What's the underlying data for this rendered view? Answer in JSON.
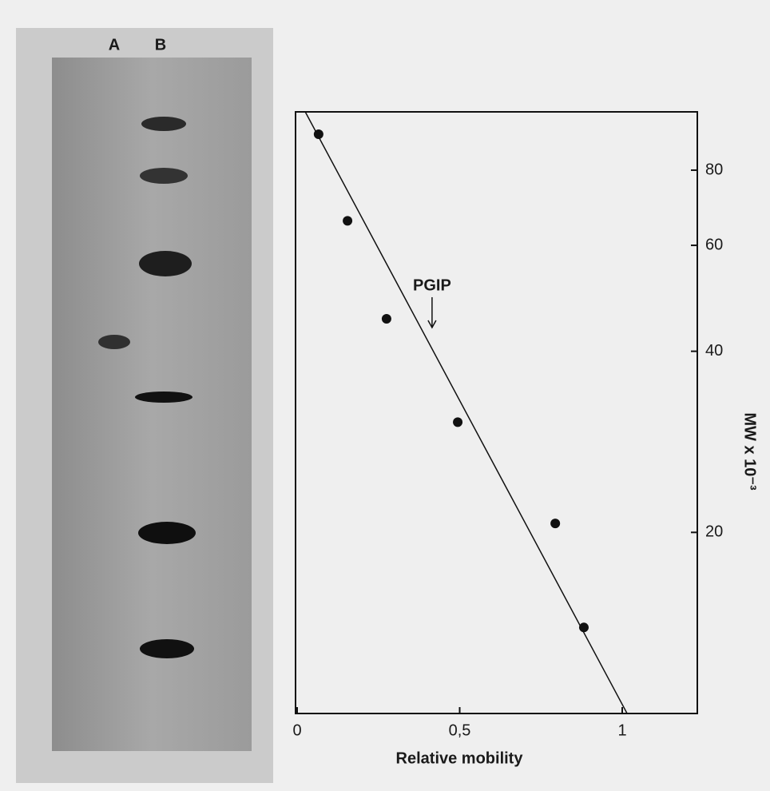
{
  "gel": {
    "lanes": [
      "A",
      "B"
    ]
  },
  "chart_data": {
    "type": "scatter",
    "xlabel": "Relative mobility",
    "ylabel": "MW x 10⁻³",
    "x": [
      0.066,
      0.155,
      0.275,
      0.494,
      0.794,
      0.882
    ],
    "values": [
      91.8,
      65.9,
      45.3,
      30.5,
      20.7,
      13.9
    ],
    "color": "#111111",
    "fit_line": {
      "x": [
        0.025,
        1.015
      ],
      "values": [
        100,
        10
      ]
    },
    "annotation": {
      "text": "PGIP",
      "x": 0.415,
      "y": 43.8
    },
    "xlim": [
      0,
      1.23
    ],
    "ylim": [
      10,
      100
    ],
    "ylog": true,
    "xticks": [
      0,
      {
        "value": 0.5,
        "label": "0,5"
      },
      1
    ],
    "yticks": [
      20,
      40,
      60,
      80
    ],
    "grid": false
  }
}
